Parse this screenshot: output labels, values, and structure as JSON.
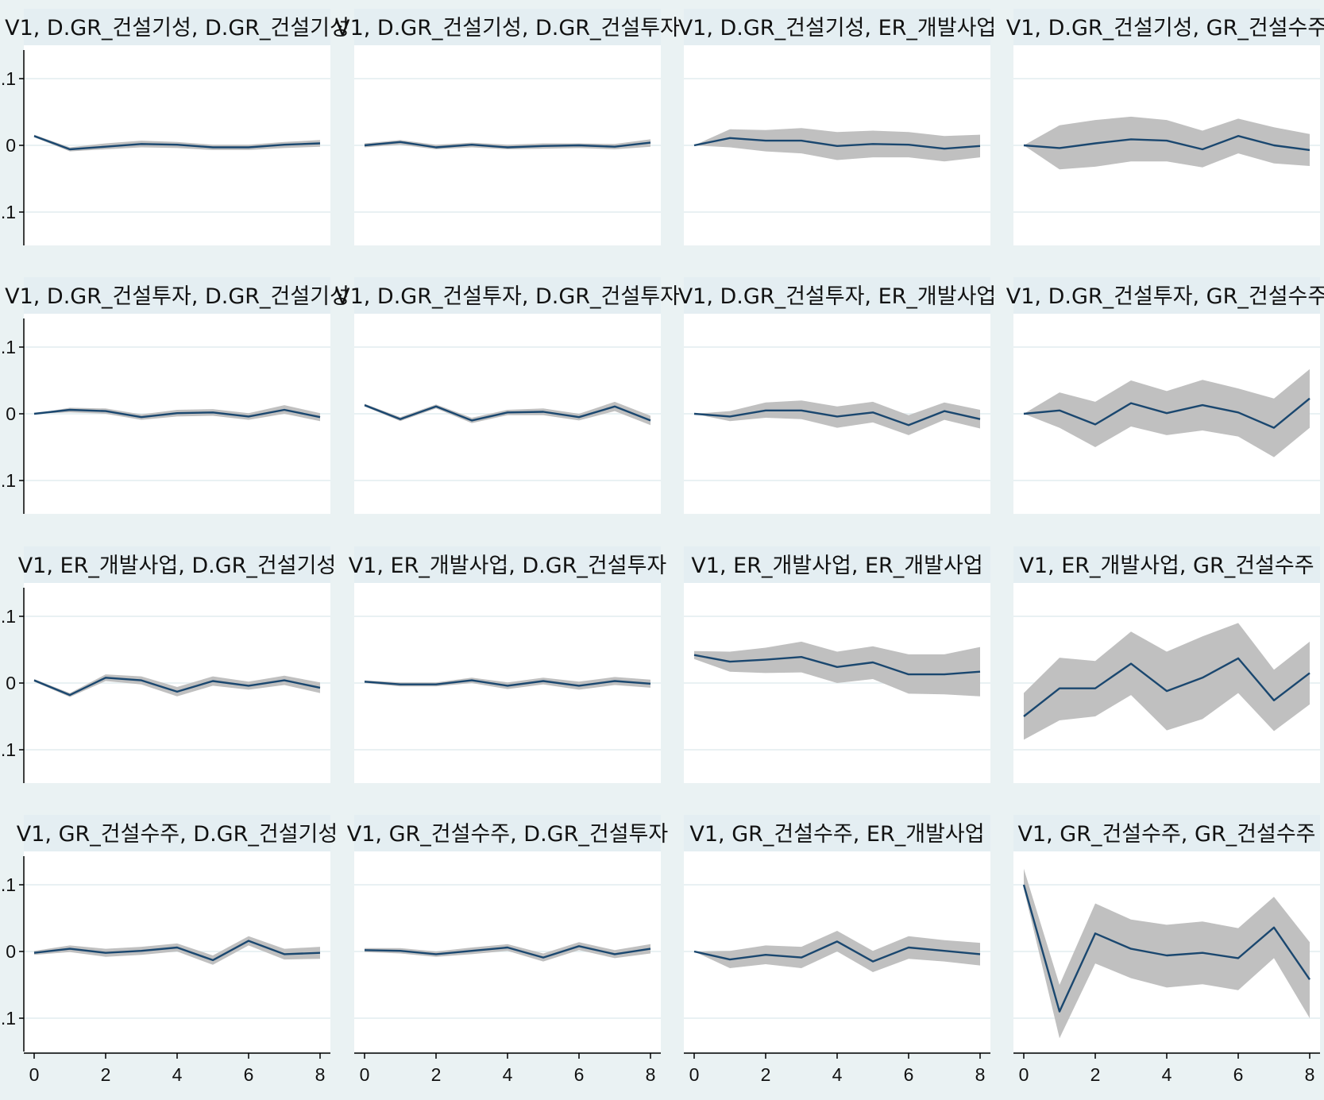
{
  "colors": {
    "background": "#eaf2f3",
    "panel": "#ffffff",
    "title_strip": "#e4eef2",
    "gridline": "#e9f1f3",
    "ci_band": "#c0c0c0",
    "line": "#1a476f",
    "axis": "#000000"
  },
  "chart_data": {
    "type": "line",
    "layout": "4x4 grid of impulse response panels, shared axes",
    "grid": true,
    "x_ticks": [
      "0",
      "2",
      "4",
      "6",
      "8"
    ],
    "y_ticks": [
      ".1",
      "0",
      ".1"
    ],
    "xlim": [
      0,
      8
    ],
    "ylim": [
      -0.15,
      0.15
    ],
    "panels": [
      {
        "title": "V1, D.GR_건설기성, D.GR_건설기성",
        "x": [
          0,
          1,
          2,
          3,
          4,
          5,
          6,
          7,
          8
        ],
        "irf": [
          0.014,
          -0.006,
          -0.002,
          0.002,
          0.001,
          -0.003,
          -0.003,
          0.001,
          0.003
        ],
        "lower": [
          0.012,
          -0.009,
          -0.006,
          -0.003,
          -0.004,
          -0.007,
          -0.007,
          -0.004,
          -0.002
        ],
        "upper": [
          0.016,
          -0.003,
          0.003,
          0.007,
          0.005,
          0.001,
          0.001,
          0.005,
          0.008
        ]
      },
      {
        "title": "V1, D.GR_건설기성, D.GR_건설투자",
        "x": [
          0,
          1,
          2,
          3,
          4,
          5,
          6,
          7,
          8
        ],
        "irf": [
          0.0,
          0.005,
          -0.003,
          0.001,
          -0.003,
          -0.001,
          0.0,
          -0.002,
          0.004
        ],
        "lower": [
          -0.003,
          0.001,
          -0.006,
          -0.003,
          -0.006,
          -0.005,
          -0.004,
          -0.006,
          -0.002
        ],
        "upper": [
          0.003,
          0.008,
          0.001,
          0.004,
          0.001,
          0.003,
          0.003,
          0.002,
          0.009
        ]
      },
      {
        "title": "V1, D.GR_건설기성, ER_개발사업",
        "x": [
          0,
          1,
          2,
          3,
          4,
          5,
          6,
          7,
          8
        ],
        "irf": [
          0.0,
          0.011,
          0.007,
          0.007,
          -0.001,
          0.002,
          0.001,
          -0.005,
          -0.001
        ],
        "lower": [
          0.0,
          -0.003,
          -0.009,
          -0.012,
          -0.022,
          -0.018,
          -0.018,
          -0.024,
          -0.018
        ],
        "upper": [
          0.0,
          0.024,
          0.023,
          0.026,
          0.02,
          0.022,
          0.02,
          0.014,
          0.016
        ]
      },
      {
        "title": "V1, D.GR_건설기성, GR_건설수주",
        "x": [
          0,
          1,
          2,
          3,
          4,
          5,
          6,
          7,
          8
        ],
        "irf": [
          0.0,
          -0.004,
          0.003,
          0.009,
          0.007,
          -0.006,
          0.014,
          0.0,
          -0.007
        ],
        "lower": [
          0.0,
          -0.036,
          -0.032,
          -0.024,
          -0.024,
          -0.033,
          -0.012,
          -0.027,
          -0.031
        ],
        "upper": [
          0.0,
          0.03,
          0.038,
          0.043,
          0.038,
          0.022,
          0.04,
          0.027,
          0.017
        ]
      },
      {
        "title": "V1, D.GR_건설투자, D.GR_건설기성",
        "x": [
          0,
          1,
          2,
          3,
          4,
          5,
          6,
          7,
          8
        ],
        "irf": [
          0.0,
          0.006,
          0.004,
          -0.005,
          0.001,
          0.002,
          -0.004,
          0.006,
          -0.005
        ],
        "lower": [
          0.0,
          0.002,
          0.0,
          -0.009,
          -0.004,
          -0.003,
          -0.009,
          0.0,
          -0.011
        ],
        "upper": [
          0.0,
          0.009,
          0.008,
          -0.001,
          0.006,
          0.007,
          0.001,
          0.013,
          0.001
        ]
      },
      {
        "title": "V1, D.GR_건설투자, D.GR_건설투자",
        "x": [
          0,
          1,
          2,
          3,
          4,
          5,
          6,
          7,
          8
        ],
        "irf": [
          0.013,
          -0.008,
          0.011,
          -0.01,
          0.002,
          0.003,
          -0.005,
          0.011,
          -0.01
        ],
        "lower": [
          0.011,
          -0.011,
          0.008,
          -0.014,
          -0.002,
          -0.002,
          -0.01,
          0.004,
          -0.017
        ],
        "upper": [
          0.015,
          -0.005,
          0.014,
          -0.006,
          0.006,
          0.008,
          0.0,
          0.018,
          -0.003
        ]
      },
      {
        "title": "V1, D.GR_건설투자, ER_개발사업",
        "x": [
          0,
          1,
          2,
          3,
          4,
          5,
          6,
          7,
          8
        ],
        "irf": [
          0.0,
          -0.004,
          0.005,
          0.005,
          -0.004,
          0.002,
          -0.017,
          0.004,
          -0.008
        ],
        "lower": [
          0.0,
          -0.011,
          -0.006,
          -0.008,
          -0.021,
          -0.013,
          -0.032,
          -0.009,
          -0.022
        ],
        "upper": [
          0.0,
          0.004,
          0.017,
          0.02,
          0.011,
          0.018,
          -0.002,
          0.017,
          0.006
        ]
      },
      {
        "title": "V1, D.GR_건설투자, GR_건설수주",
        "x": [
          0,
          1,
          2,
          3,
          4,
          5,
          6,
          7,
          8
        ],
        "irf": [
          0.0,
          0.005,
          -0.016,
          0.016,
          0.001,
          0.013,
          0.002,
          -0.021,
          0.023
        ],
        "lower": [
          0.0,
          -0.021,
          -0.05,
          -0.019,
          -0.032,
          -0.025,
          -0.034,
          -0.065,
          -0.021
        ],
        "upper": [
          0.0,
          0.032,
          0.018,
          0.05,
          0.034,
          0.051,
          0.038,
          0.023,
          0.067
        ]
      },
      {
        "title": "V1, ER_개발사업, D.GR_건설기성",
        "x": [
          0,
          1,
          2,
          3,
          4,
          5,
          6,
          7,
          8
        ],
        "irf": [
          0.004,
          -0.018,
          0.008,
          0.004,
          -0.013,
          0.003,
          -0.004,
          0.004,
          -0.007
        ],
        "lower": [
          0.002,
          -0.021,
          0.003,
          -0.002,
          -0.02,
          -0.004,
          -0.01,
          -0.003,
          -0.015
        ],
        "upper": [
          0.006,
          -0.015,
          0.013,
          0.01,
          -0.006,
          0.01,
          0.002,
          0.011,
          0.001
        ]
      },
      {
        "title": "V1, ER_개발사업, D.GR_건설투자",
        "x": [
          0,
          1,
          2,
          3,
          4,
          5,
          6,
          7,
          8
        ],
        "irf": [
          0.002,
          -0.002,
          -0.002,
          0.004,
          -0.004,
          0.003,
          -0.004,
          0.003,
          -0.001
        ],
        "lower": [
          0.0,
          -0.005,
          -0.005,
          0.0,
          -0.009,
          -0.002,
          -0.01,
          -0.003,
          -0.007
        ],
        "upper": [
          0.004,
          0.001,
          0.001,
          0.008,
          0.001,
          0.008,
          0.002,
          0.009,
          0.005
        ]
      },
      {
        "title": "V1, ER_개발사업, ER_개발사업",
        "x": [
          0,
          1,
          2,
          3,
          4,
          5,
          6,
          7,
          8
        ],
        "irf": [
          0.042,
          0.032,
          0.035,
          0.039,
          0.024,
          0.031,
          0.013,
          0.013,
          0.017
        ],
        "lower": [
          0.036,
          0.017,
          0.015,
          0.016,
          0.0,
          0.006,
          -0.016,
          -0.017,
          -0.02
        ],
        "upper": [
          0.048,
          0.047,
          0.053,
          0.062,
          0.047,
          0.055,
          0.043,
          0.043,
          0.054
        ]
      },
      {
        "title": "V1, ER_개발사업, GR_건설수주",
        "x": [
          0,
          1,
          2,
          3,
          4,
          5,
          6,
          7,
          8
        ],
        "irf": [
          -0.05,
          -0.008,
          -0.008,
          0.029,
          -0.012,
          0.008,
          0.037,
          -0.026,
          0.015
        ],
        "lower": [
          -0.085,
          -0.056,
          -0.05,
          -0.018,
          -0.071,
          -0.054,
          -0.015,
          -0.072,
          -0.032
        ],
        "upper": [
          -0.015,
          0.038,
          0.033,
          0.077,
          0.047,
          0.07,
          0.09,
          0.02,
          0.062
        ]
      },
      {
        "title": "V1, GR_건설수주, D.GR_건설기성",
        "x": [
          0,
          1,
          2,
          3,
          4,
          5,
          6,
          7,
          8
        ],
        "irf": [
          -0.002,
          0.004,
          -0.002,
          0.001,
          0.006,
          -0.013,
          0.016,
          -0.004,
          -0.002
        ],
        "lower": [
          -0.005,
          -0.001,
          -0.008,
          -0.005,
          0.0,
          -0.02,
          0.009,
          -0.012,
          -0.011
        ],
        "upper": [
          0.001,
          0.009,
          0.004,
          0.007,
          0.012,
          -0.006,
          0.023,
          0.004,
          0.007
        ]
      },
      {
        "title": "V1, GR_건설수주, D.GR_건설투자",
        "x": [
          0,
          1,
          2,
          3,
          4,
          5,
          6,
          7,
          8
        ],
        "irf": [
          0.002,
          0.001,
          -0.004,
          0.001,
          0.006,
          -0.009,
          0.008,
          -0.004,
          0.004
        ],
        "lower": [
          -0.001,
          -0.003,
          -0.008,
          -0.004,
          0.001,
          -0.015,
          0.002,
          -0.01,
          -0.003
        ],
        "upper": [
          0.005,
          0.005,
          0.0,
          0.006,
          0.011,
          -0.003,
          0.014,
          0.002,
          0.011
        ]
      },
      {
        "title": "V1, GR_건설수주, ER_개발사업",
        "x": [
          0,
          1,
          2,
          3,
          4,
          5,
          6,
          7,
          8
        ],
        "irf": [
          0.0,
          -0.012,
          -0.005,
          -0.009,
          0.015,
          -0.015,
          0.006,
          0.001,
          -0.004
        ],
        "lower": [
          0.0,
          -0.025,
          -0.019,
          -0.025,
          0.0,
          -0.031,
          -0.011,
          -0.015,
          -0.021
        ],
        "upper": [
          0.0,
          0.001,
          0.009,
          0.007,
          0.031,
          0.001,
          0.023,
          0.017,
          0.013
        ]
      },
      {
        "title": "V1, GR_건설수주, GR_건설수주",
        "x": [
          0,
          1,
          2,
          3,
          4,
          5,
          6,
          7,
          8
        ],
        "irf": [
          0.1,
          -0.09,
          0.027,
          0.004,
          -0.006,
          -0.002,
          -0.01,
          0.036,
          -0.042
        ],
        "lower": [
          0.094,
          -0.13,
          -0.018,
          -0.04,
          -0.054,
          -0.049,
          -0.058,
          -0.01,
          -0.1
        ],
        "upper": [
          0.124,
          -0.05,
          0.072,
          0.048,
          0.04,
          0.045,
          0.035,
          0.082,
          0.014
        ]
      }
    ]
  }
}
